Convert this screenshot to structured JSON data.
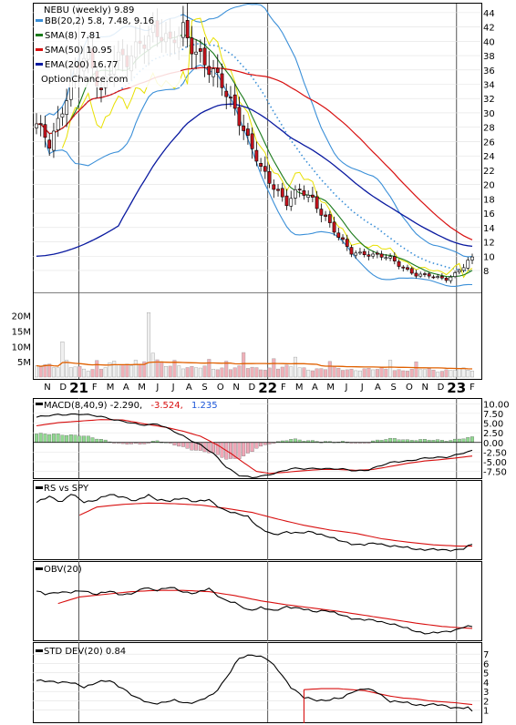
{
  "chart_data": {
    "type": "line",
    "ticker_title": "NEBU (weekly) 9.89",
    "watermark": "OptionChance.com",
    "legend": [
      {
        "label": "BB(20,2) 5.8, 7.48, 9.16",
        "color": "#3a8fd8"
      },
      {
        "label": "SMA(8) 7.81",
        "color": "#1a7a1a"
      },
      {
        "label": "SMA(50) 10.95",
        "color": "#d81010"
      },
      {
        "label": "EMA(200) 16.77",
        "color": "#0a1aa0"
      }
    ],
    "months": [
      "N",
      "D",
      "21",
      "F",
      "M",
      "A",
      "M",
      "J",
      "J",
      "A",
      "S",
      "O",
      "N",
      "D",
      "22",
      "F",
      "M",
      "A",
      "M",
      "J",
      "J",
      "A",
      "S",
      "O",
      "N",
      "D",
      "23",
      "F"
    ],
    "year_markers": [
      "21",
      "22",
      "23"
    ],
    "price_axis": {
      "ticks": [
        8,
        10,
        12,
        14,
        16,
        18,
        20,
        22,
        24,
        26,
        28,
        30,
        32,
        34,
        36,
        38,
        40,
        42,
        44
      ],
      "ylim": [
        5.2,
        45
      ]
    },
    "volume_axis": {
      "labels": [
        "20M",
        "15M",
        "10M",
        "5M"
      ],
      "ylim": [
        0,
        27
      ]
    },
    "ohlc_anchor": [
      [
        0,
        28.0
      ],
      [
        3,
        25.5
      ],
      [
        6,
        31.0
      ],
      [
        9,
        36.0
      ],
      [
        12,
        37.5
      ],
      [
        15,
        33.5
      ],
      [
        18,
        38.0
      ],
      [
        21,
        36.5
      ],
      [
        24,
        40.0
      ],
      [
        27,
        42.0
      ],
      [
        31,
        39.0
      ],
      [
        34,
        42.0
      ],
      [
        37,
        39.0
      ],
      [
        40,
        35.5
      ],
      [
        43,
        34.0
      ],
      [
        46,
        31.0
      ],
      [
        49,
        26.0
      ],
      [
        52,
        22.0
      ],
      [
        55,
        20.0
      ],
      [
        58,
        17.5
      ],
      [
        61,
        19.0
      ],
      [
        64,
        18.0
      ],
      [
        67,
        15.5
      ],
      [
        70,
        12.5
      ],
      [
        73,
        10.5
      ],
      [
        76,
        10.5
      ],
      [
        79,
        10.0
      ],
      [
        82,
        9.6
      ],
      [
        85,
        8.5
      ],
      [
        88,
        7.4
      ],
      [
        91,
        7.2
      ],
      [
        93,
        7.0
      ],
      [
        95,
        6.9
      ],
      [
        97,
        7.6
      ],
      [
        99,
        8.5
      ],
      [
        101,
        9.89
      ]
    ],
    "volume_anchor": [
      [
        0,
        3.5
      ],
      [
        3,
        4.2
      ],
      [
        6,
        3.6
      ],
      [
        9,
        3.0
      ],
      [
        12,
        2.4
      ],
      [
        15,
        3.2
      ],
      [
        18,
        4.4
      ],
      [
        21,
        3.6
      ],
      [
        24,
        4.6
      ],
      [
        27,
        5.2
      ],
      [
        30,
        3.6
      ],
      [
        33,
        4.0
      ],
      [
        36,
        3.1
      ],
      [
        39,
        3.0
      ],
      [
        42,
        2.8
      ],
      [
        45,
        3.2
      ],
      [
        48,
        3.0
      ],
      [
        51,
        2.7
      ],
      [
        54,
        3.0
      ],
      [
        57,
        3.2
      ],
      [
        60,
        2.9
      ],
      [
        63,
        2.8
      ],
      [
        66,
        2.6
      ],
      [
        69,
        2.7
      ],
      [
        72,
        2.5
      ],
      [
        75,
        2.6
      ],
      [
        78,
        2.4
      ],
      [
        81,
        2.5
      ],
      [
        84,
        2.4
      ],
      [
        87,
        2.3
      ],
      [
        90,
        2.5
      ],
      [
        93,
        2.2
      ],
      [
        96,
        2.3
      ],
      [
        99,
        2.4
      ],
      [
        101,
        2.2
      ]
    ],
    "volume_spikes": [
      [
        6,
        11.5
      ],
      [
        7,
        5.5
      ],
      [
        14,
        5.4
      ],
      [
        23,
        5.5
      ],
      [
        26,
        21.0
      ],
      [
        27,
        7.8
      ],
      [
        32,
        5.5
      ],
      [
        40,
        5.8
      ],
      [
        44,
        5.2
      ],
      [
        48,
        8.0
      ],
      [
        55,
        6.0
      ],
      [
        60,
        6.5
      ],
      [
        68,
        5.1
      ],
      [
        82,
        5.5
      ],
      [
        88,
        5.0
      ]
    ],
    "macd": {
      "label": "MACD(8,40,9) -2.290,",
      "signal_label": "-3.524,",
      "hist_label": "1.235",
      "ticks": [
        10.0,
        7.5,
        5.0,
        2.5,
        0.0,
        -2.5,
        -5.0,
        -7.5
      ],
      "tick_labels": [
        "10.00",
        "7.50",
        "5.00",
        "2.50",
        "0.00",
        "-2.50",
        "-5.00",
        "-7.50"
      ],
      "ylim": [
        -9.0,
        11.0
      ],
      "macd_anchor": [
        [
          0,
          6.4
        ],
        [
          5,
          7.3
        ],
        [
          10,
          7.2
        ],
        [
          15,
          6.8
        ],
        [
          20,
          5.3
        ],
        [
          24,
          4.6
        ],
        [
          28,
          4.8
        ],
        [
          31,
          3.2
        ],
        [
          34,
          1.7
        ],
        [
          38,
          -0.6
        ],
        [
          41,
          -3.0
        ],
        [
          44,
          -6.3
        ],
        [
          47,
          -8.4
        ],
        [
          50,
          -9.2
        ],
        [
          53,
          -8.6
        ],
        [
          56,
          -7.6
        ],
        [
          59,
          -6.8
        ],
        [
          62,
          -6.9
        ],
        [
          65,
          -6.6
        ],
        [
          68,
          -6.8
        ],
        [
          71,
          -7.0
        ],
        [
          74,
          -7.3
        ],
        [
          77,
          -7.0
        ],
        [
          80,
          -6.0
        ],
        [
          83,
          -5.0
        ],
        [
          86,
          -4.7
        ],
        [
          89,
          -4.3
        ],
        [
          92,
          -4.0
        ],
        [
          95,
          -3.7
        ],
        [
          98,
          -3.0
        ],
        [
          101,
          -2.29
        ]
      ],
      "signal_anchor": [
        [
          0,
          4.3
        ],
        [
          5,
          5.1
        ],
        [
          10,
          5.5
        ],
        [
          15,
          5.9
        ],
        [
          20,
          5.8
        ],
        [
          25,
          4.8
        ],
        [
          30,
          3.9
        ],
        [
          34,
          2.9
        ],
        [
          38,
          1.6
        ],
        [
          42,
          -0.7
        ],
        [
          45,
          -2.8
        ],
        [
          48,
          -5.2
        ],
        [
          51,
          -7.5
        ],
        [
          54,
          -8.0
        ],
        [
          58,
          -7.7
        ],
        [
          62,
          -7.3
        ],
        [
          66,
          -7.0
        ],
        [
          70,
          -7.0
        ],
        [
          74,
          -7.2
        ],
        [
          78,
          -7.0
        ],
        [
          82,
          -6.2
        ],
        [
          86,
          -5.4
        ],
        [
          90,
          -4.8
        ],
        [
          94,
          -4.4
        ],
        [
          98,
          -3.9
        ],
        [
          101,
          -3.52
        ]
      ]
    },
    "rs": {
      "label": "RS vs SPY",
      "ylim": [
        0,
        100
      ],
      "line_anchor": [
        [
          0,
          78
        ],
        [
          3,
          88
        ],
        [
          6,
          80
        ],
        [
          8,
          91
        ],
        [
          11,
          80
        ],
        [
          14,
          83
        ],
        [
          17,
          90
        ],
        [
          20,
          88
        ],
        [
          23,
          80
        ],
        [
          26,
          90
        ],
        [
          28,
          84
        ],
        [
          31,
          80
        ],
        [
          34,
          86
        ],
        [
          37,
          80
        ],
        [
          40,
          82
        ],
        [
          43,
          70
        ],
        [
          46,
          62
        ],
        [
          49,
          58
        ],
        [
          52,
          40
        ],
        [
          55,
          30
        ],
        [
          58,
          36
        ],
        [
          61,
          33
        ],
        [
          64,
          35
        ],
        [
          67,
          30
        ],
        [
          70,
          22
        ],
        [
          73,
          18
        ],
        [
          76,
          16
        ],
        [
          79,
          18
        ],
        [
          82,
          15
        ],
        [
          85,
          12
        ],
        [
          88,
          10
        ],
        [
          91,
          9
        ],
        [
          94,
          8
        ],
        [
          97,
          9
        ],
        [
          99,
          10
        ],
        [
          101,
          16
        ]
      ],
      "ma_anchor": [
        [
          10,
          60
        ],
        [
          14,
          72
        ],
        [
          20,
          76
        ],
        [
          26,
          78
        ],
        [
          32,
          77
        ],
        [
          38,
          75
        ],
        [
          44,
          70
        ],
        [
          50,
          64
        ],
        [
          56,
          54
        ],
        [
          62,
          45
        ],
        [
          68,
          38
        ],
        [
          74,
          33
        ],
        [
          80,
          25
        ],
        [
          86,
          20
        ],
        [
          92,
          16
        ],
        [
          98,
          14
        ],
        [
          101,
          14
        ]
      ]
    },
    "obv": {
      "label": "OBV(20)",
      "ylim": [
        0,
        100
      ],
      "line_anchor": [
        [
          0,
          70
        ],
        [
          2,
          66
        ],
        [
          5,
          70
        ],
        [
          8,
          68
        ],
        [
          11,
          72
        ],
        [
          14,
          66
        ],
        [
          17,
          70
        ],
        [
          20,
          66
        ],
        [
          23,
          68
        ],
        [
          25,
          76
        ],
        [
          28,
          73
        ],
        [
          31,
          76
        ],
        [
          34,
          70
        ],
        [
          37,
          68
        ],
        [
          40,
          74
        ],
        [
          43,
          60
        ],
        [
          46,
          52
        ],
        [
          49,
          42
        ],
        [
          52,
          46
        ],
        [
          55,
          40
        ],
        [
          58,
          48
        ],
        [
          61,
          44
        ],
        [
          64,
          40
        ],
        [
          67,
          42
        ],
        [
          70,
          35
        ],
        [
          73,
          30
        ],
        [
          76,
          27
        ],
        [
          79,
          25
        ],
        [
          82,
          22
        ],
        [
          85,
          15
        ],
        [
          88,
          10
        ],
        [
          91,
          6
        ],
        [
          94,
          8
        ],
        [
          97,
          12
        ],
        [
          99,
          16
        ],
        [
          101,
          16
        ]
      ],
      "ma_anchor": [
        [
          5,
          52
        ],
        [
          10,
          62
        ],
        [
          16,
          66
        ],
        [
          22,
          70
        ],
        [
          28,
          72
        ],
        [
          34,
          72
        ],
        [
          40,
          70
        ],
        [
          46,
          64
        ],
        [
          52,
          56
        ],
        [
          58,
          50
        ],
        [
          64,
          45
        ],
        [
          70,
          40
        ],
        [
          76,
          34
        ],
        [
          82,
          28
        ],
        [
          88,
          22
        ],
        [
          94,
          17
        ],
        [
          98,
          15
        ],
        [
          101,
          14
        ]
      ]
    },
    "std": {
      "label": "STD DEV(20) 0.84",
      "ticks": [
        1,
        2,
        3,
        4,
        5,
        6,
        7
      ],
      "ylim": [
        0,
        7.6
      ],
      "line_anchor": [
        [
          0,
          4.1
        ],
        [
          4,
          4.1
        ],
        [
          8,
          3.9
        ],
        [
          11,
          3.5
        ],
        [
          14,
          4.0
        ],
        [
          17,
          4.1
        ],
        [
          20,
          3.4
        ],
        [
          23,
          2.3
        ],
        [
          26,
          1.8
        ],
        [
          29,
          1.8
        ],
        [
          32,
          2.0
        ],
        [
          35,
          1.8
        ],
        [
          38,
          2.0
        ],
        [
          41,
          2.7
        ],
        [
          44,
          4.5
        ],
        [
          47,
          6.5
        ],
        [
          50,
          7.0
        ],
        [
          53,
          6.6
        ],
        [
          56,
          5.3
        ],
        [
          59,
          3.5
        ],
        [
          62,
          2.3
        ],
        [
          65,
          2.1
        ],
        [
          68,
          2.1
        ],
        [
          71,
          2.3
        ],
        [
          73,
          3.0
        ],
        [
          76,
          3.3
        ],
        [
          79,
          2.9
        ],
        [
          82,
          2.0
        ],
        [
          85,
          1.8
        ],
        [
          88,
          1.6
        ],
        [
          91,
          1.6
        ],
        [
          94,
          1.5
        ],
        [
          97,
          1.3
        ],
        [
          100,
          1.2
        ],
        [
          101,
          0.84
        ]
      ],
      "ma_anchor": [
        [
          62,
          3.2
        ],
        [
          66,
          3.3
        ],
        [
          70,
          3.3
        ],
        [
          73,
          3.2
        ],
        [
          76,
          3.1
        ],
        [
          79,
          2.8
        ],
        [
          82,
          2.5
        ],
        [
          85,
          2.3
        ],
        [
          88,
          2.2
        ],
        [
          91,
          2.0
        ],
        [
          94,
          1.9
        ],
        [
          97,
          1.8
        ],
        [
          101,
          1.6
        ]
      ]
    }
  }
}
